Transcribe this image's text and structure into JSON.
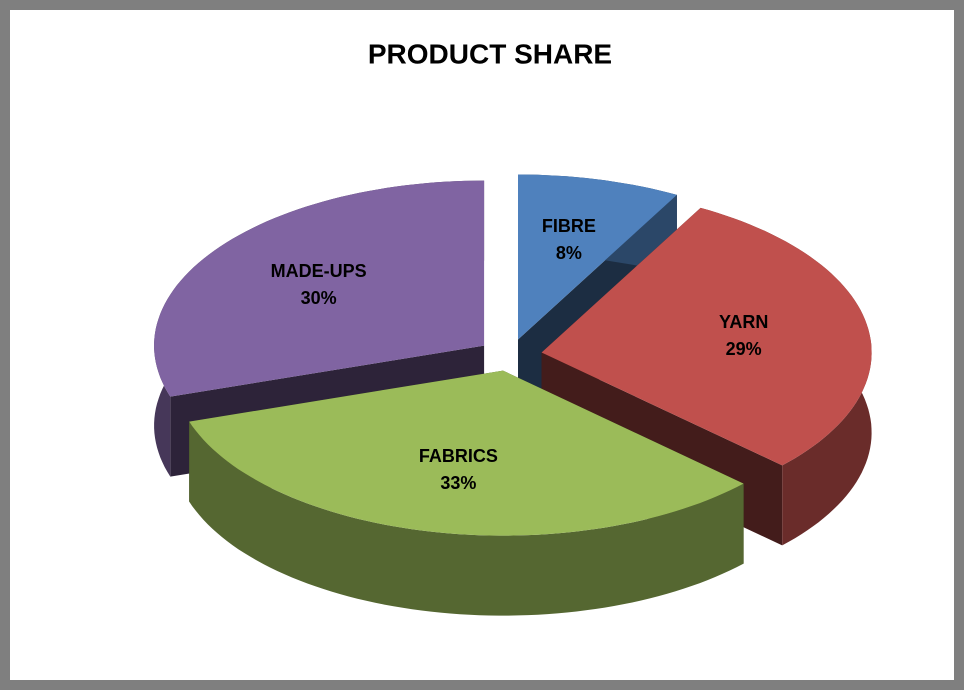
{
  "chart_data": {
    "type": "pie3d",
    "title": "PRODUCT SHARE",
    "categories": [
      "FIBRE",
      "YARN",
      "FABRICS",
      "MADE-UPS"
    ],
    "values": [
      8,
      29,
      33,
      30
    ],
    "value_labels": [
      "8%",
      "29%",
      "33%",
      "30%"
    ],
    "colors": [
      "#4f81bd",
      "#c0504d",
      "#9bbb59",
      "#8064a2"
    ]
  }
}
